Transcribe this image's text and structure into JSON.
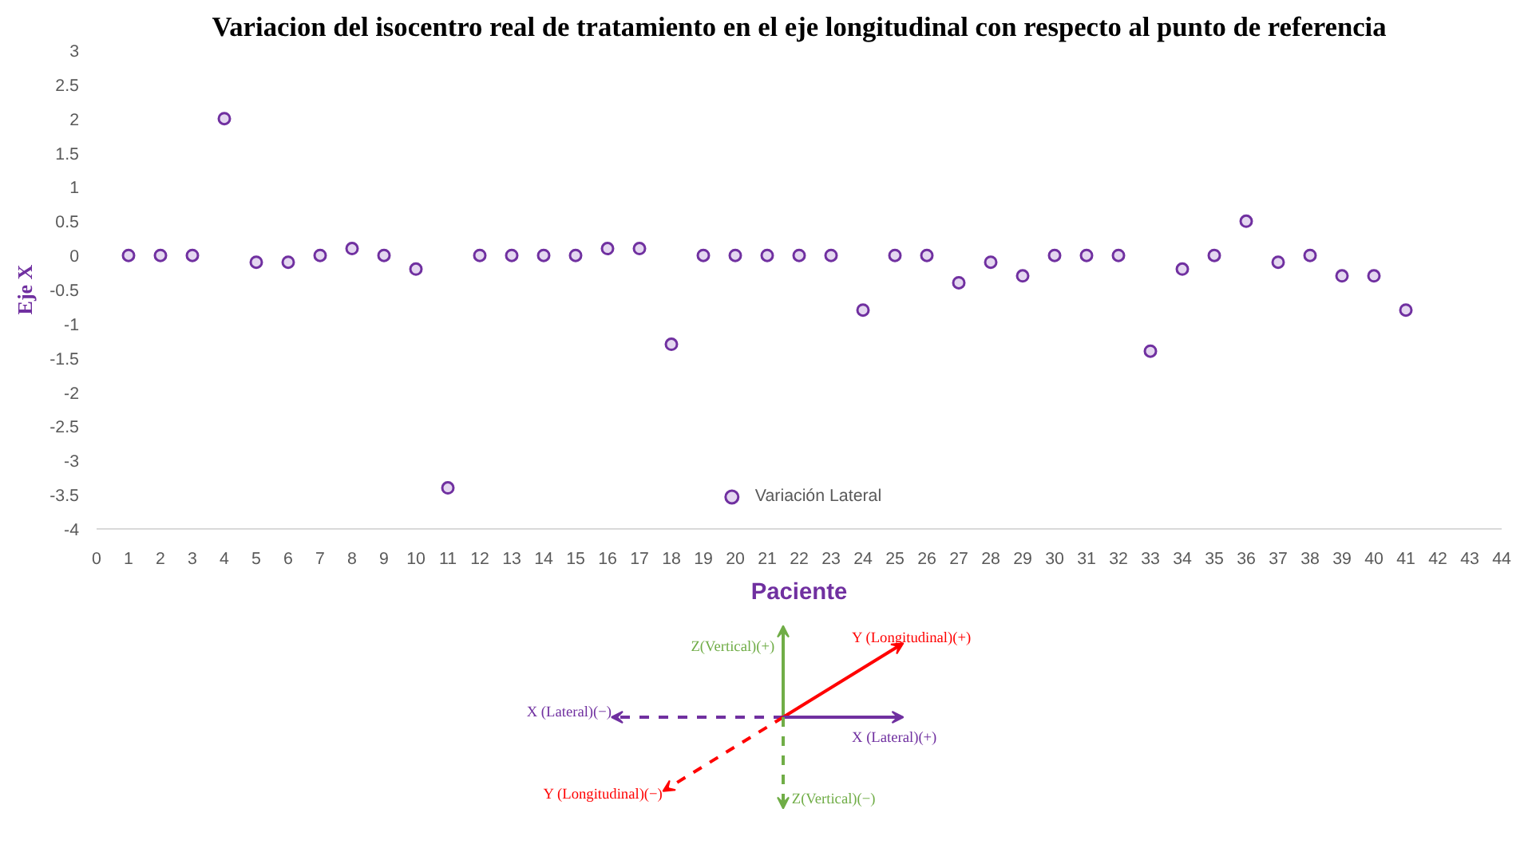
{
  "chart_data": {
    "type": "scatter",
    "title": "Variacion del isocentro real de tratamiento en el eje longitudinal con respecto al punto de referencia",
    "xlabel": "Paciente",
    "ylabel": "Eje X",
    "x": [
      1,
      2,
      3,
      4,
      5,
      6,
      7,
      8,
      9,
      10,
      11,
      12,
      13,
      14,
      15,
      16,
      17,
      18,
      19,
      20,
      21,
      22,
      23,
      24,
      25,
      26,
      27,
      28,
      29,
      30,
      31,
      32,
      33,
      34,
      35,
      36,
      37,
      38,
      39,
      40,
      41
    ],
    "series": [
      {
        "name": "Variación Lateral",
        "color": "#7030a0",
        "values": [
          0,
          0,
          0,
          2,
          -0.1,
          -0.1,
          0,
          0.1,
          0,
          -0.2,
          -3.4,
          0,
          0,
          0,
          0,
          0.1,
          0.1,
          -1.3,
          0,
          0,
          0,
          0,
          0,
          -0.8,
          0,
          0,
          -0.4,
          -0.1,
          -0.3,
          0,
          0,
          0,
          -1.4,
          -0.2,
          0,
          0.5,
          -0.1,
          0,
          -0.3,
          -0.3,
          -0.8
        ],
        "errors": [
          0.05,
          0.05,
          0.05,
          0.05,
          0.05,
          0.05,
          0.05,
          0.05,
          0.05,
          0.05,
          0.05,
          0.05,
          0.05,
          0.05,
          0.05,
          0.05,
          0.05,
          0.05,
          0.05,
          0.05,
          0.05,
          0.05,
          0.05,
          0.05,
          0.05,
          0.05,
          0.05,
          0.05,
          0.05,
          0.05,
          0.05,
          0.05,
          0.05,
          0.05,
          0.05,
          0.05,
          0.05,
          0.05,
          0.05,
          0.05,
          0.05
        ]
      }
    ],
    "xlim": [
      0,
      44
    ],
    "xticks": [
      0,
      1,
      2,
      3,
      4,
      5,
      6,
      7,
      8,
      9,
      10,
      11,
      12,
      13,
      14,
      15,
      16,
      17,
      18,
      19,
      20,
      21,
      22,
      23,
      24,
      25,
      26,
      27,
      28,
      29,
      30,
      31,
      32,
      33,
      34,
      35,
      36,
      37,
      38,
      39,
      40,
      41,
      42,
      43,
      44
    ],
    "ylim": [
      -4,
      3
    ],
    "yticks": [
      -4,
      -3.5,
      -3,
      -2.5,
      -2,
      -1.5,
      -1,
      -0.5,
      0,
      0.5,
      1,
      1.5,
      2,
      2.5,
      3
    ],
    "grid": false,
    "legend": "bottom",
    "marker": "circle",
    "annotations": [
      "Z(Vertical)(+)",
      "Y (Longitudinal)(+)",
      "X (Lateral)(−)",
      "X (Lateral)(+)",
      "Y (Longitudinal)(−)",
      "Z(Vertical)(−)"
    ]
  }
}
